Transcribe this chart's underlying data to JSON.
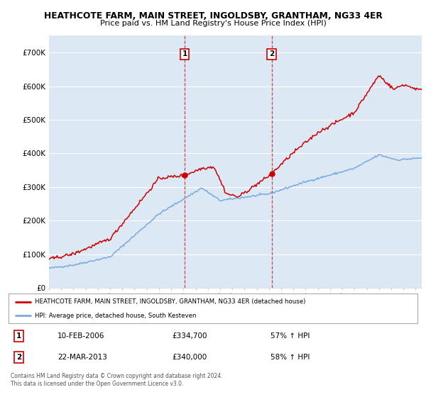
{
  "title_line1": "HEATHCOTE FARM, MAIN STREET, INGOLDSBY, GRANTHAM, NG33 4ER",
  "title_line2": "Price paid vs. HM Land Registry's House Price Index (HPI)",
  "ylim": [
    0,
    750000
  ],
  "yticks": [
    0,
    100000,
    200000,
    300000,
    400000,
    500000,
    600000,
    700000
  ],
  "ytick_labels": [
    "£0",
    "£100K",
    "£200K",
    "£300K",
    "£400K",
    "£500K",
    "£600K",
    "£700K"
  ],
  "background_color": "#ffffff",
  "plot_bg_color": "#dce9f5",
  "grid_color": "#ffffff",
  "sale1_date": 2006.11,
  "sale1_price": 334700,
  "sale1_label": "1",
  "sale2_date": 2013.22,
  "sale2_price": 340000,
  "sale2_label": "2",
  "line1_color": "#cc0000",
  "line2_color": "#7aaadd",
  "legend_line1": "HEATHCOTE FARM, MAIN STREET, INGOLDSBY, GRANTHAM, NG33 4ER (detached house)",
  "legend_line2": "HPI: Average price, detached house, South Kesteven",
  "annotation1_date": "10-FEB-2006",
  "annotation1_price": "£334,700",
  "annotation1_hpi": "57% ↑ HPI",
  "annotation2_date": "22-MAR-2013",
  "annotation2_price": "£340,000",
  "annotation2_hpi": "58% ↑ HPI",
  "footer": "Contains HM Land Registry data © Crown copyright and database right 2024.\nThis data is licensed under the Open Government Licence v3.0.",
  "xmin": 1995,
  "xmax": 2025.5
}
